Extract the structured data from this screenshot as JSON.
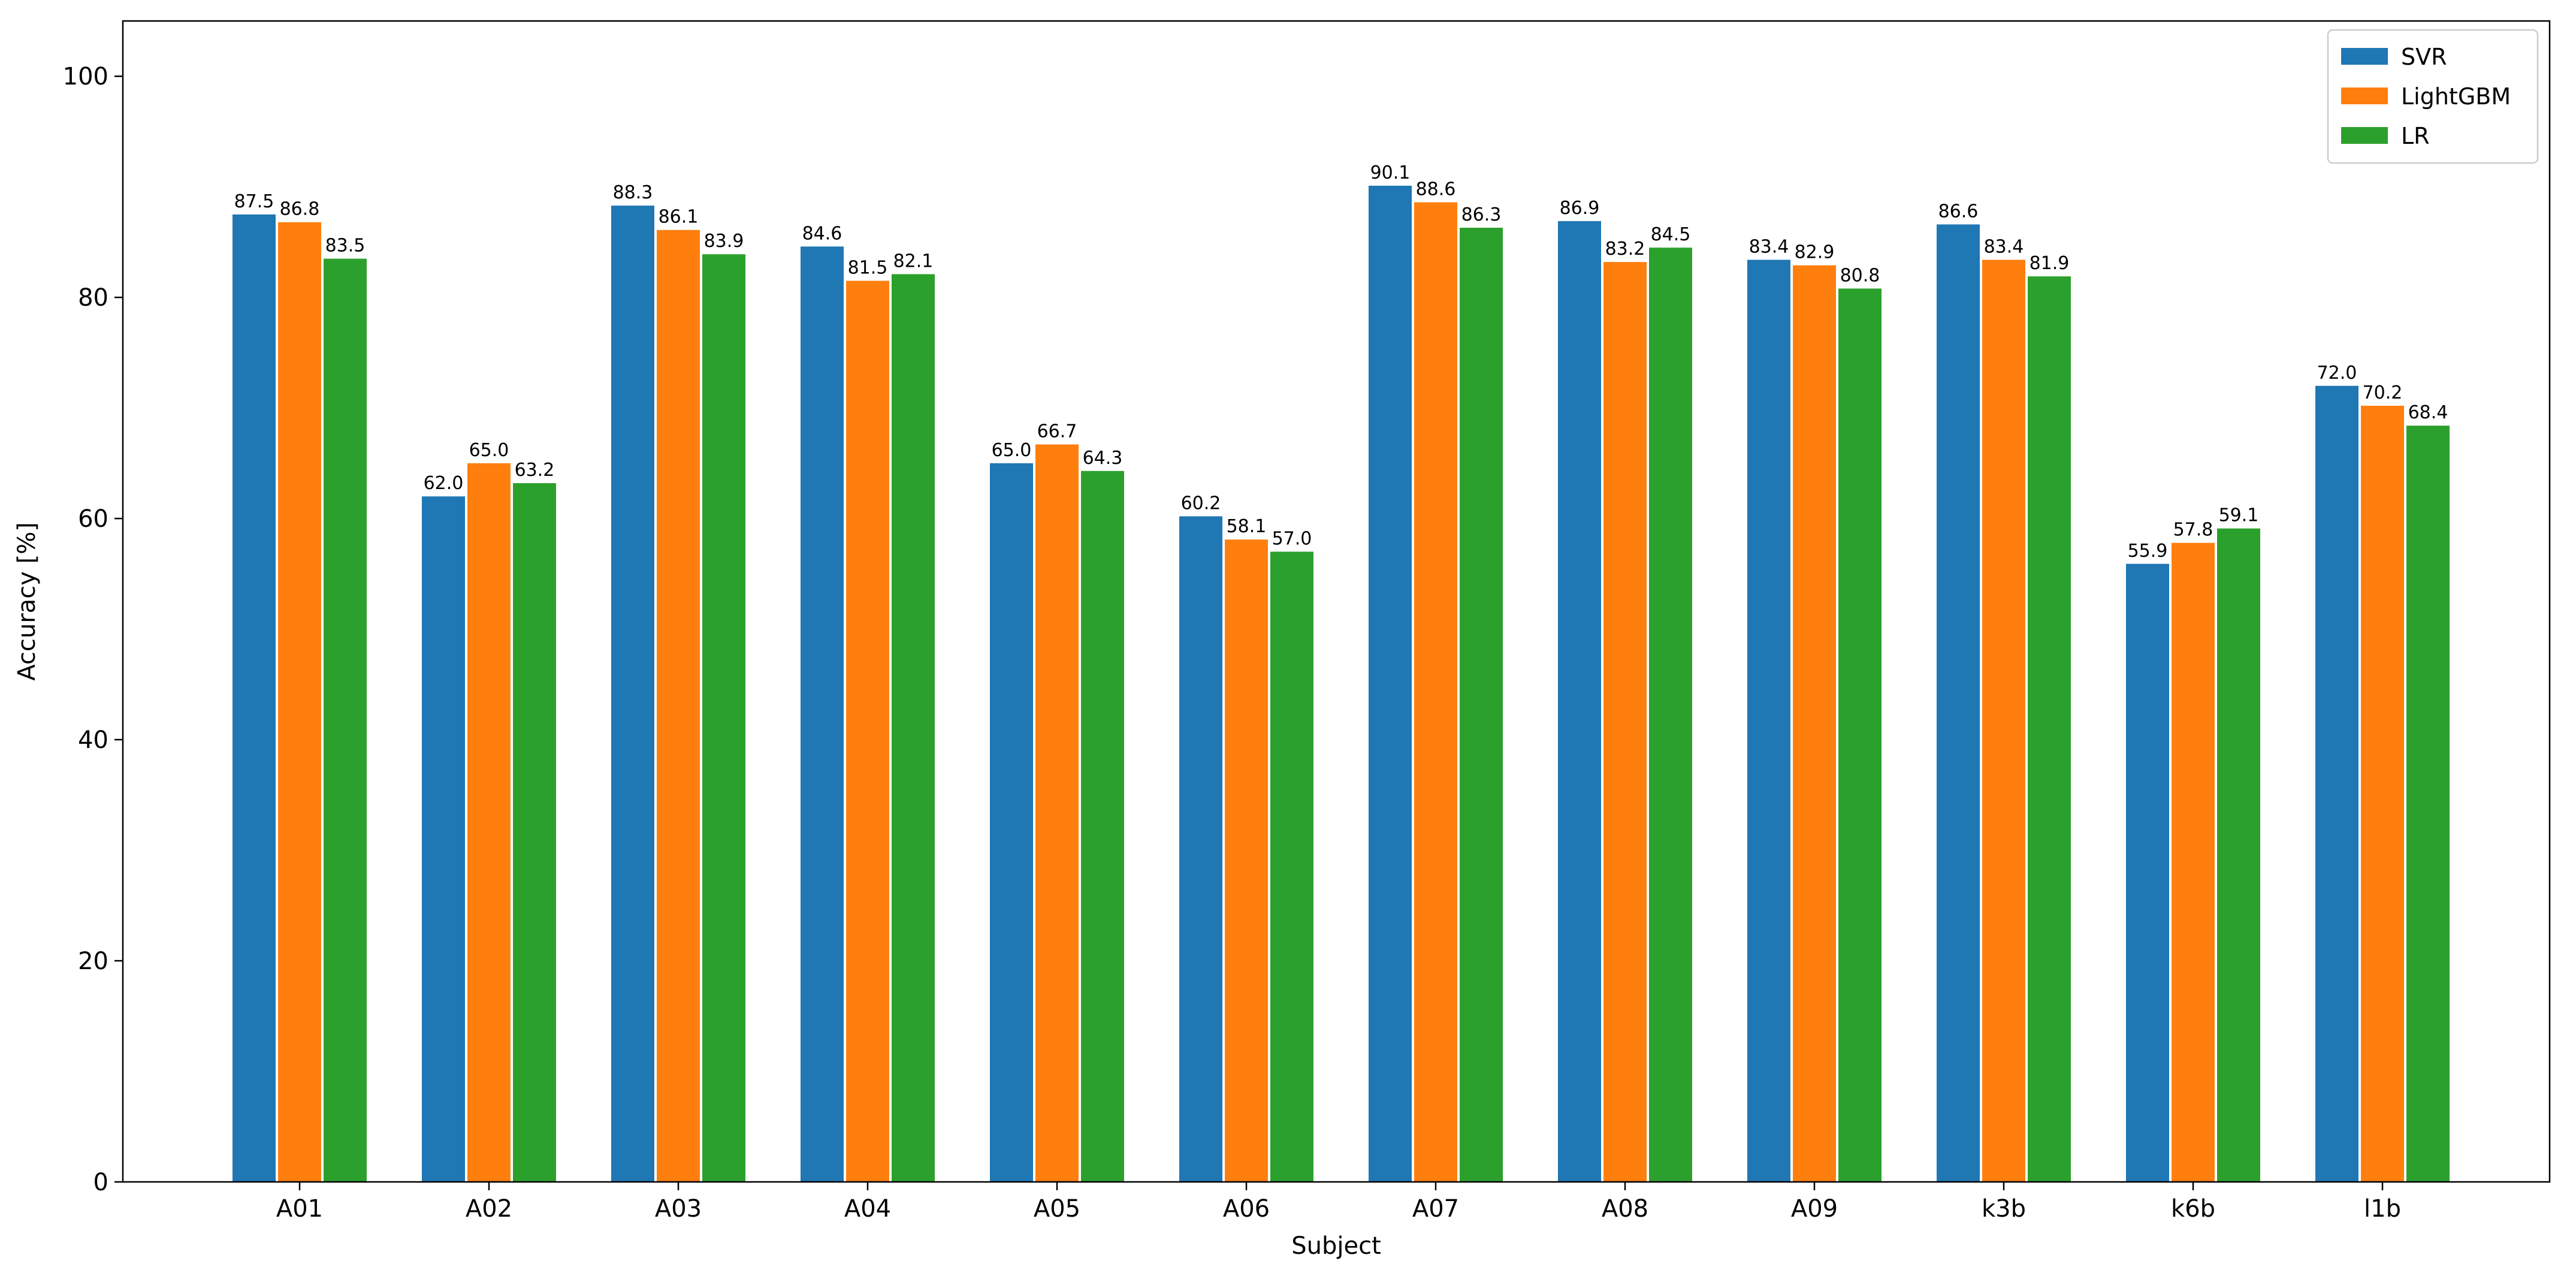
{
  "chart_data": {
    "type": "bar",
    "title": "",
    "xlabel": "Subject",
    "ylabel": "Accuracy [%]",
    "ylim": [
      0,
      105
    ],
    "yticks": [
      0,
      20,
      40,
      60,
      80,
      100
    ],
    "grid": false,
    "legend_position": "top-right",
    "categories": [
      "A01",
      "A02",
      "A03",
      "A04",
      "A05",
      "A06",
      "A07",
      "A08",
      "A09",
      "k3b",
      "k6b",
      "l1b"
    ],
    "series": [
      {
        "name": "SVR",
        "color": "#1f77b4",
        "values": [
          87.5,
          62.0,
          88.3,
          84.6,
          65.0,
          60.2,
          90.1,
          86.9,
          83.4,
          86.6,
          55.9,
          72.0
        ]
      },
      {
        "name": "LightGBM",
        "color": "#ff7f0e",
        "values": [
          86.8,
          65.0,
          86.1,
          81.5,
          66.7,
          58.1,
          88.6,
          83.2,
          82.9,
          83.4,
          57.8,
          70.2
        ]
      },
      {
        "name": "LR",
        "color": "#2ca02c",
        "values": [
          83.5,
          63.2,
          83.9,
          82.1,
          64.3,
          57.0,
          86.3,
          84.5,
          80.8,
          81.9,
          59.1,
          68.4
        ]
      }
    ]
  }
}
